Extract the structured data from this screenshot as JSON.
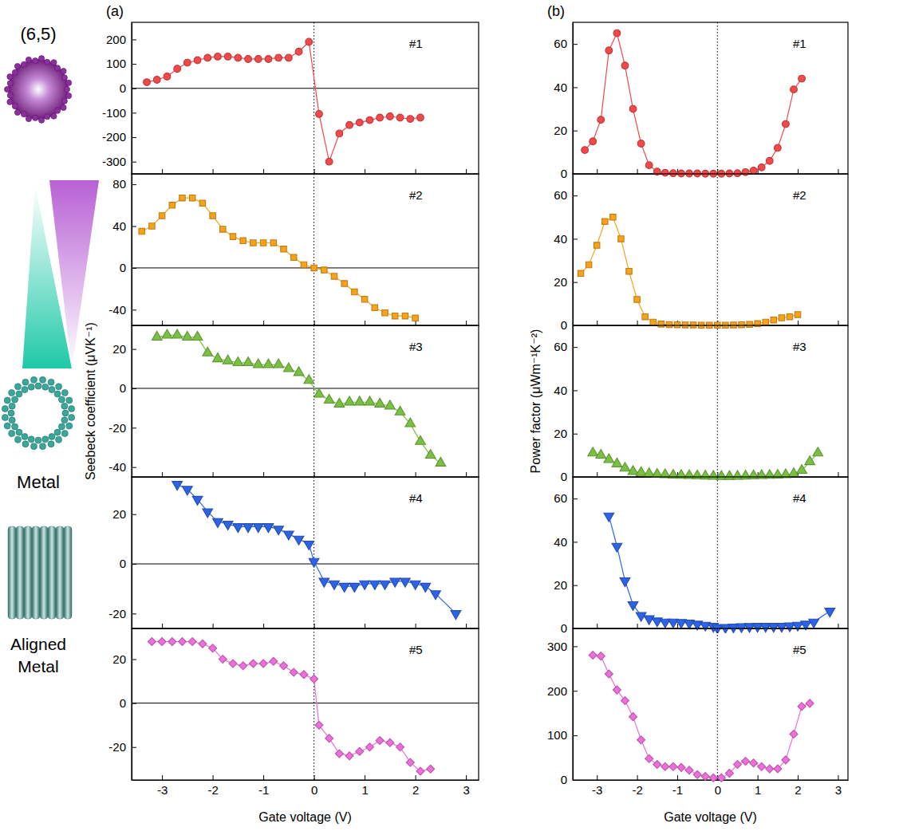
{
  "figure": {
    "panels": [
      {
        "label": "(a)",
        "ylabel": "Seebeck coefficient (μVK⁻¹)",
        "xlabel": "Gate voltage (V)"
      },
      {
        "label": "(b)",
        "ylabel": "Power factor (μWm⁻¹K⁻²)",
        "xlabel": "Gate voltage (V)"
      }
    ],
    "illustration": {
      "top": "(6,5)",
      "middle": "Metal",
      "bottom": "Aligned Metal"
    }
  },
  "chart_data": [
    {
      "type": "line",
      "title": "#1",
      "color": "#f2494b",
      "marker": "circle",
      "x": [
        -3.3,
        -3.1,
        -2.9,
        -2.7,
        -2.5,
        -2.3,
        -2.1,
        -1.9,
        -1.7,
        -1.5,
        -1.3,
        -1.1,
        -0.9,
        -0.7,
        -0.5,
        -0.3,
        -0.1,
        0.1,
        0.3,
        0.5,
        0.7,
        0.9,
        1.1,
        1.3,
        1.5,
        1.7,
        1.9,
        2.1
      ],
      "values": [
        25,
        35,
        48,
        80,
        105,
        115,
        125,
        130,
        130,
        125,
        120,
        120,
        120,
        125,
        125,
        150,
        190,
        -105,
        -300,
        -185,
        -150,
        -140,
        -130,
        -120,
        -115,
        -120,
        -125,
        -120
      ],
      "xlim": [
        -3.6,
        3.25
      ],
      "xticks": [
        -3,
        -2,
        -1,
        0,
        1,
        2,
        3
      ],
      "ylim": [
        -350,
        270
      ],
      "yticks": [
        -300,
        -200,
        -100,
        0,
        100,
        200
      ],
      "tick_labels": "y"
    },
    {
      "type": "line",
      "title": "#2",
      "color": "#f7a21b",
      "marker": "square",
      "x": [
        -3.4,
        -3.2,
        -3.0,
        -2.8,
        -2.6,
        -2.4,
        -2.2,
        -2.0,
        -1.8,
        -1.6,
        -1.4,
        -1.2,
        -1.0,
        -0.8,
        -0.6,
        -0.4,
        -0.2,
        0.0,
        0.2,
        0.4,
        0.6,
        0.8,
        1.0,
        1.2,
        1.4,
        1.6,
        1.8,
        2.0
      ],
      "values": [
        35,
        40,
        50,
        60,
        67,
        67,
        62,
        50,
        37,
        30,
        26,
        24,
        24,
        24,
        18,
        10,
        3,
        0,
        -2,
        -8,
        -15,
        -23,
        -30,
        -38,
        -43,
        -46,
        -46,
        -48
      ],
      "xlim": [
        -3.6,
        3.25
      ],
      "xticks": [
        -3,
        -2,
        -1,
        0,
        1,
        2,
        3
      ],
      "ylim": [
        -55,
        90
      ],
      "yticks": [
        -40,
        0,
        40,
        80
      ],
      "tick_labels": "y"
    },
    {
      "type": "line",
      "title": "#3",
      "color": "#7ac143",
      "marker": "triangle",
      "x": [
        -3.1,
        -2.9,
        -2.7,
        -2.5,
        -2.3,
        -2.1,
        -1.9,
        -1.7,
        -1.5,
        -1.3,
        -1.1,
        -0.9,
        -0.7,
        -0.5,
        -0.3,
        -0.1,
        0.1,
        0.3,
        0.5,
        0.7,
        0.9,
        1.1,
        1.3,
        1.5,
        1.7,
        1.9,
        2.1,
        2.3,
        2.5
      ],
      "values": [
        26,
        27,
        27,
        26,
        26,
        18,
        15,
        14,
        13,
        13,
        12,
        12,
        12,
        10,
        8,
        4,
        -3,
        -6,
        -8,
        -7,
        -7,
        -7,
        -8,
        -9,
        -12,
        -18,
        -27,
        -34,
        -38
      ],
      "xlim": [
        -3.6,
        3.25
      ],
      "xticks": [
        -3,
        -2,
        -1,
        0,
        1,
        2,
        3
      ],
      "ylim": [
        -45,
        32
      ],
      "yticks": [
        -40,
        -20,
        0,
        20
      ],
      "tick_labels": "y"
    },
    {
      "type": "line",
      "title": "#4",
      "color": "#2e63e6",
      "marker": "triangle-down",
      "x": [
        -2.7,
        -2.5,
        -2.3,
        -2.1,
        -1.9,
        -1.7,
        -1.5,
        -1.3,
        -1.1,
        -0.9,
        -0.7,
        -0.5,
        -0.3,
        -0.1,
        0.0,
        0.2,
        0.4,
        0.6,
        0.8,
        1.0,
        1.2,
        1.4,
        1.6,
        1.8,
        2.0,
        2.2,
        2.4,
        2.8
      ],
      "values": [
        32,
        30,
        26,
        21,
        17,
        16,
        15,
        15,
        15,
        15,
        14,
        12,
        10,
        8,
        1,
        -7,
        -8,
        -9,
        -9,
        -8,
        -8,
        -8,
        -7,
        -7,
        -8,
        -9,
        -12,
        -20
      ],
      "xlim": [
        -3.6,
        3.25
      ],
      "xticks": [
        -3,
        -2,
        -1,
        0,
        1,
        2,
        3
      ],
      "ylim": [
        -26,
        35
      ],
      "yticks": [
        -20,
        0,
        20
      ],
      "tick_labels": "y"
    },
    {
      "type": "line",
      "title": "#5",
      "color": "#ee6fd9",
      "marker": "diamond",
      "x": [
        -3.2,
        -3.0,
        -2.8,
        -2.6,
        -2.4,
        -2.2,
        -2.0,
        -1.8,
        -1.6,
        -1.4,
        -1.2,
        -1.0,
        -0.8,
        -0.6,
        -0.4,
        -0.2,
        0.0,
        0.1,
        0.3,
        0.5,
        0.7,
        0.9,
        1.1,
        1.3,
        1.5,
        1.7,
        1.9,
        2.1,
        2.3
      ],
      "values": [
        28,
        28,
        28,
        28,
        28,
        27,
        25,
        20,
        18,
        17,
        18,
        18,
        19,
        17,
        14,
        13,
        11,
        -10,
        -16,
        -23,
        -24,
        -22,
        -20,
        -17,
        -18,
        -20,
        -27,
        -31,
        -30
      ],
      "xlim": [
        -3.6,
        3.25
      ],
      "xticks": [
        -3,
        -2,
        -1,
        0,
        1,
        2,
        3
      ],
      "ylim": [
        -35,
        34
      ],
      "yticks": [
        -20,
        0,
        20
      ]
    },
    {
      "type": "line",
      "title": "#1",
      "color": "#f2494b",
      "marker": "circle",
      "x": [
        -3.3,
        -3.1,
        -2.9,
        -2.7,
        -2.5,
        -2.3,
        -2.1,
        -1.9,
        -1.7,
        -1.5,
        -1.3,
        -1.1,
        -0.9,
        -0.7,
        -0.5,
        -0.3,
        -0.1,
        0.1,
        0.3,
        0.5,
        0.7,
        0.9,
        1.1,
        1.3,
        1.5,
        1.7,
        1.9,
        2.1
      ],
      "values": [
        11,
        15,
        25,
        57,
        65,
        50,
        30,
        14,
        4,
        1,
        0.5,
        0.3,
        0.2,
        0.2,
        0.2,
        0.1,
        0.1,
        0.1,
        0.2,
        0.3,
        0.8,
        1.5,
        3,
        6,
        12,
        23,
        39,
        44
      ],
      "xlim": [
        -3.6,
        3.25
      ],
      "xticks": [
        -3,
        -2,
        -1,
        0,
        1,
        2,
        3
      ],
      "ylim": [
        0,
        70
      ],
      "yticks": [
        0,
        20,
        40,
        60
      ],
      "tick_labels": "y"
    },
    {
      "type": "line",
      "title": "#2",
      "color": "#f7a21b",
      "marker": "square",
      "x": [
        -3.4,
        -3.2,
        -3.0,
        -2.8,
        -2.6,
        -2.4,
        -2.2,
        -2.0,
        -1.8,
        -1.6,
        -1.4,
        -1.2,
        -1.0,
        -0.8,
        -0.6,
        -0.4,
        -0.2,
        0.0,
        0.2,
        0.4,
        0.6,
        0.8,
        1.0,
        1.2,
        1.4,
        1.6,
        1.8,
        2.0
      ],
      "values": [
        24,
        28,
        37,
        48,
        50,
        40,
        25,
        12,
        4,
        1.5,
        0.6,
        0.4,
        0.3,
        0.2,
        0.2,
        0.1,
        0.1,
        0.1,
        0.1,
        0.2,
        0.3,
        0.5,
        0.8,
        1.5,
        2.5,
        3.5,
        4,
        5
      ],
      "xlim": [
        -3.6,
        3.25
      ],
      "xticks": [
        -3,
        -2,
        -1,
        0,
        1,
        2,
        3
      ],
      "ylim": [
        0,
        70
      ],
      "yticks": [
        0,
        20,
        40,
        60
      ],
      "tick_labels": "y"
    },
    {
      "type": "line",
      "title": "#3",
      "color": "#7ac143",
      "marker": "triangle",
      "x": [
        -3.1,
        -2.9,
        -2.7,
        -2.5,
        -2.3,
        -2.1,
        -1.9,
        -1.7,
        -1.5,
        -1.3,
        -1.1,
        -0.9,
        -0.7,
        -0.5,
        -0.3,
        -0.1,
        0.1,
        0.3,
        0.5,
        0.7,
        0.9,
        1.1,
        1.3,
        1.5,
        1.7,
        1.9,
        2.1,
        2.3,
        2.5
      ],
      "values": [
        11,
        10,
        8,
        6,
        4,
        2.5,
        2,
        1.5,
        1.2,
        1,
        0.8,
        0.7,
        0.6,
        0.5,
        0.4,
        0.3,
        0.2,
        0.2,
        0.3,
        0.4,
        0.5,
        0.6,
        0.7,
        0.8,
        1,
        1.5,
        3,
        7,
        11
      ],
      "xlim": [
        -3.6,
        3.25
      ],
      "xticks": [
        -3,
        -2,
        -1,
        0,
        1,
        2,
        3
      ],
      "ylim": [
        0,
        70
      ],
      "yticks": [
        0,
        20,
        40,
        60
      ],
      "tick_labels": "y"
    },
    {
      "type": "line",
      "title": "#4",
      "color": "#2e63e6",
      "marker": "triangle-down",
      "x": [
        -2.7,
        -2.5,
        -2.3,
        -2.1,
        -1.9,
        -1.7,
        -1.5,
        -1.3,
        -1.1,
        -0.9,
        -0.7,
        -0.5,
        -0.3,
        -0.1,
        0.0,
        0.2,
        0.4,
        0.6,
        0.8,
        1.0,
        1.2,
        1.4,
        1.6,
        1.8,
        2.0,
        2.2,
        2.4,
        2.8
      ],
      "values": [
        52,
        38,
        22,
        11,
        6,
        4.5,
        3.5,
        3,
        3,
        2.8,
        2.5,
        2,
        1.5,
        1,
        0.3,
        0.5,
        0.7,
        0.8,
        0.9,
        1,
        1,
        1,
        1,
        1.2,
        1.5,
        2,
        3,
        8
      ],
      "xlim": [
        -3.6,
        3.25
      ],
      "xticks": [
        -3,
        -2,
        -1,
        0,
        1,
        2,
        3
      ],
      "ylim": [
        0,
        70
      ],
      "yticks": [
        0,
        20,
        40,
        60
      ],
      "tick_labels": "y"
    },
    {
      "type": "line",
      "title": "#5",
      "color": "#ee6fd9",
      "marker": "diamond",
      "x": [
        -3.1,
        -2.9,
        -2.7,
        -2.5,
        -2.3,
        -2.1,
        -1.9,
        -1.7,
        -1.5,
        -1.3,
        -1.1,
        -0.9,
        -0.7,
        -0.5,
        -0.3,
        -0.1,
        0.1,
        0.3,
        0.5,
        0.7,
        0.9,
        1.1,
        1.3,
        1.5,
        1.7,
        1.9,
        2.1,
        2.3
      ],
      "values": [
        280,
        278,
        238,
        202,
        178,
        142,
        90,
        48,
        35,
        30,
        30,
        28,
        22,
        12,
        8,
        5,
        5,
        15,
        35,
        42,
        38,
        30,
        25,
        25,
        45,
        103,
        165,
        172
      ],
      "xlim": [
        -3.6,
        3.25
      ],
      "xticks": [
        -3,
        -2,
        -1,
        0,
        1,
        2,
        3
      ],
      "ylim": [
        0,
        340
      ],
      "yticks": [
        0,
        100,
        200,
        300
      ]
    }
  ]
}
